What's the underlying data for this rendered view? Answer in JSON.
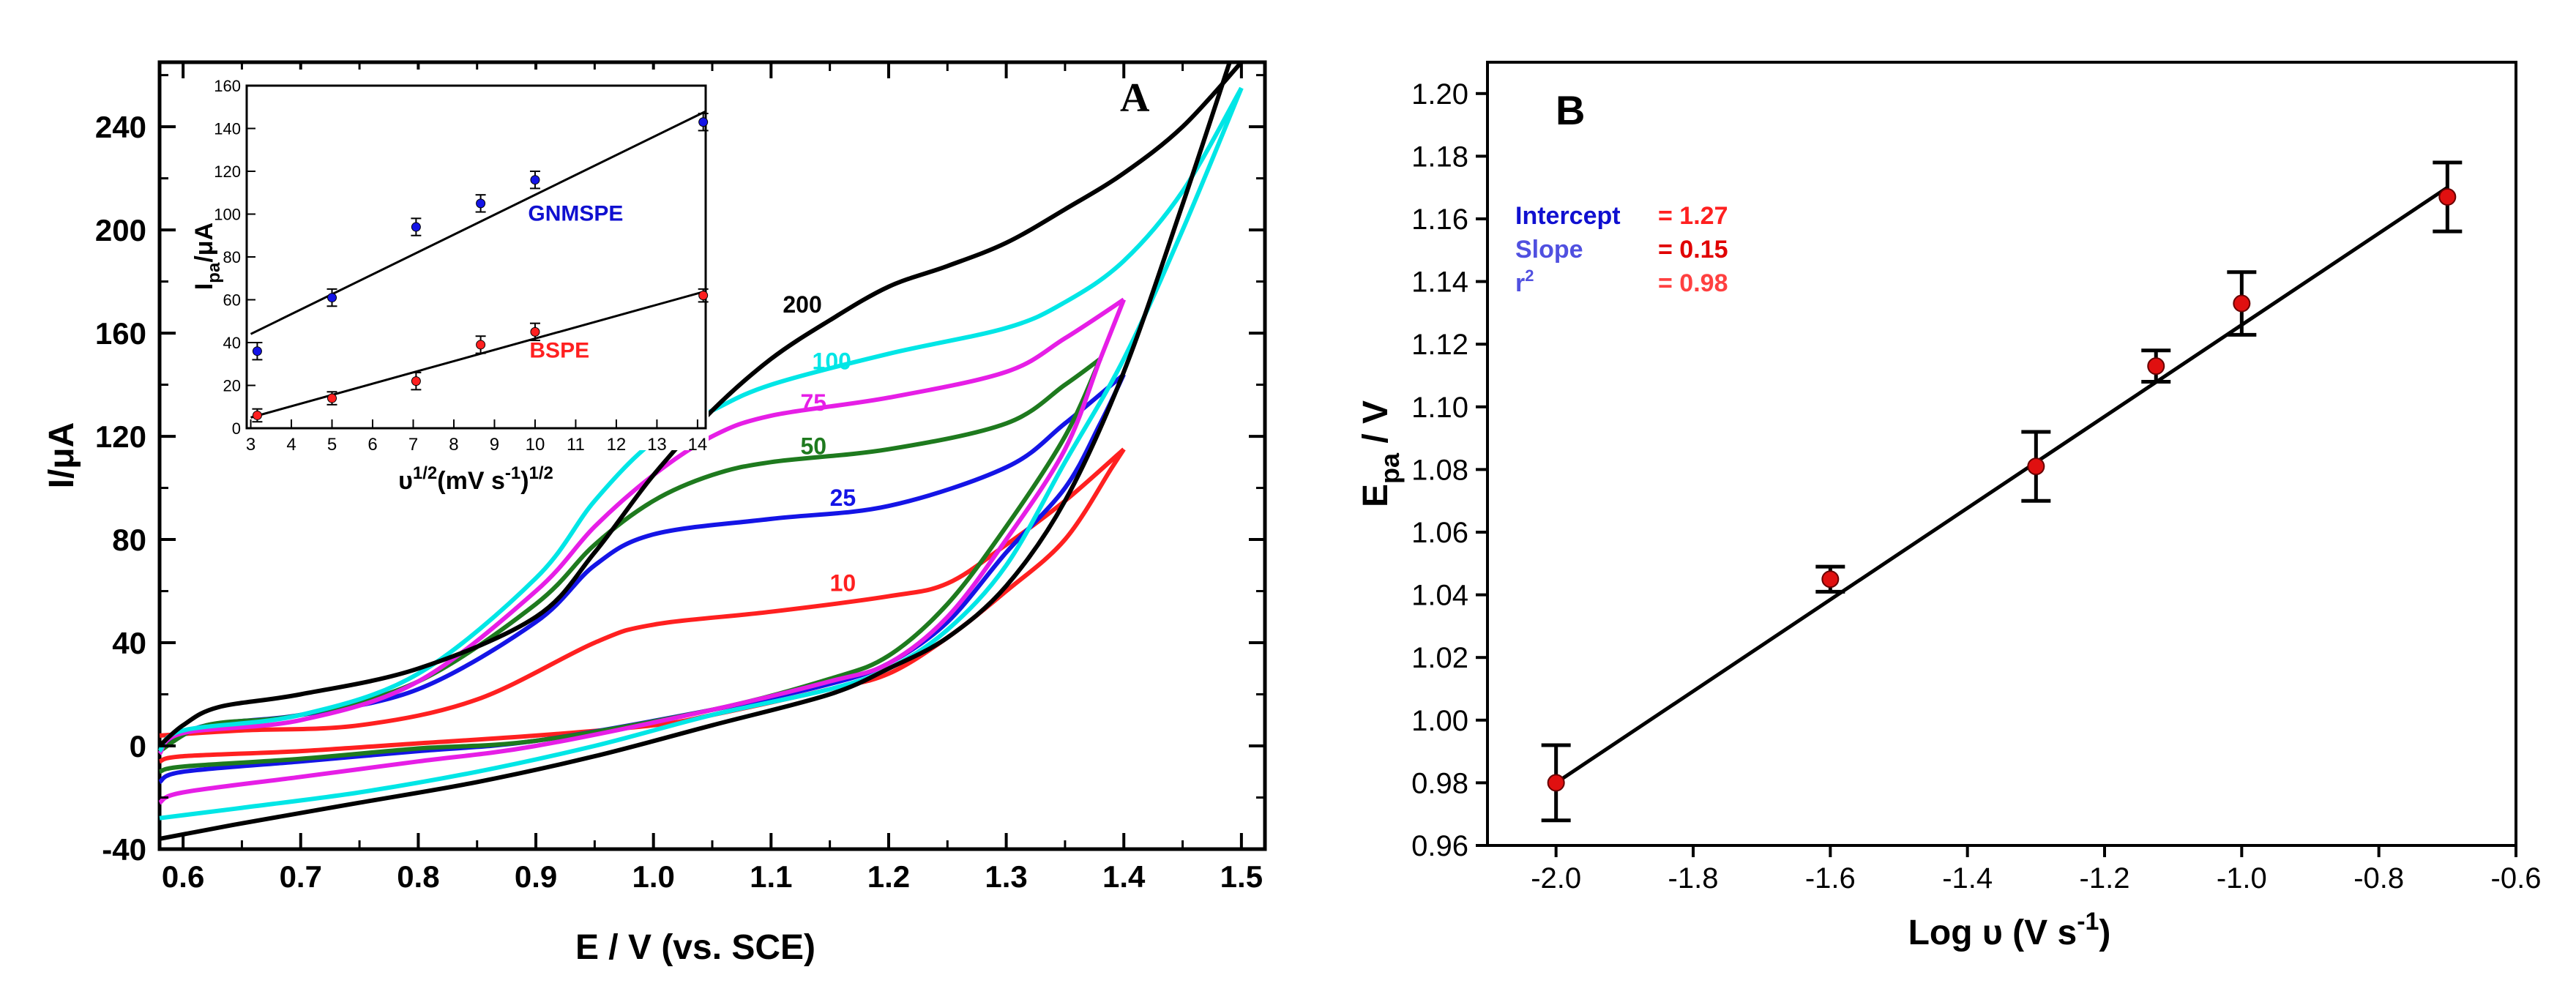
{
  "colors": {
    "c10": "#ff2020",
    "c25": "#1414e6",
    "c50": "#1e7a1e",
    "c75": "#e61ee6",
    "c100": "#00e6e6",
    "c200": "#000000",
    "point": "#e01010",
    "blue_text": "#1010d0",
    "red_text": "#ff2020"
  },
  "chart_data": [
    {
      "type": "line",
      "panel_label": "A",
      "title": "",
      "xlabel": "E / V (vs. SCE)",
      "ylabel": "I/μA",
      "xlim": [
        0.58,
        1.52
      ],
      "ylim": [
        -40,
        265
      ],
      "x_ticks": [
        "0.6",
        "0.7",
        "0.8",
        "0.9",
        "1.0",
        "1.1",
        "1.2",
        "1.3",
        "1.4",
        "1.5"
      ],
      "x_tick_values": [
        0.6,
        0.7,
        0.8,
        0.9,
        1.0,
        1.1,
        1.2,
        1.3,
        1.4,
        1.5
      ],
      "y_ticks": [
        "-40",
        "0",
        "40",
        "80",
        "120",
        "160",
        "200",
        "240"
      ],
      "y_tick_values": [
        -40,
        0,
        40,
        80,
        120,
        160,
        200,
        240
      ],
      "series": [
        {
          "name": "10",
          "color_key": "c10",
          "label_at": [
            1.15,
            60
          ],
          "forward": [
            [
              0.58,
              4
            ],
            [
              0.65,
              6
            ],
            [
              0.75,
              8
            ],
            [
              0.85,
              18
            ],
            [
              0.95,
              40
            ],
            [
              1.0,
              47
            ],
            [
              1.1,
              52
            ],
            [
              1.2,
              58
            ],
            [
              1.25,
              63
            ],
            [
              1.3,
              78
            ],
            [
              1.35,
              95
            ],
            [
              1.4,
              115
            ]
          ],
          "reverse": [
            [
              1.4,
              115
            ],
            [
              1.39,
              108
            ],
            [
              1.35,
              80
            ],
            [
              1.3,
              60
            ],
            [
              1.25,
              42
            ],
            [
              1.2,
              28
            ],
            [
              1.15,
              22
            ],
            [
              1.05,
              12
            ],
            [
              1.0,
              8
            ],
            [
              0.9,
              4
            ],
            [
              0.8,
              1
            ],
            [
              0.7,
              -2
            ],
            [
              0.6,
              -4
            ],
            [
              0.58,
              -6
            ]
          ]
        },
        {
          "name": "25",
          "color_key": "c25",
          "label_at": [
            1.15,
            93
          ],
          "forward": [
            [
              0.58,
              0
            ],
            [
              0.62,
              8
            ],
            [
              0.7,
              12
            ],
            [
              0.8,
              22
            ],
            [
              0.9,
              48
            ],
            [
              0.95,
              70
            ],
            [
              1.0,
              82
            ],
            [
              1.1,
              88
            ],
            [
              1.2,
              93
            ],
            [
              1.3,
              108
            ],
            [
              1.35,
              125
            ],
            [
              1.4,
              144
            ]
          ],
          "reverse": [
            [
              1.4,
              144
            ],
            [
              1.38,
              125
            ],
            [
              1.35,
              100
            ],
            [
              1.3,
              75
            ],
            [
              1.25,
              48
            ],
            [
              1.2,
              32
            ],
            [
              1.15,
              24
            ],
            [
              1.05,
              14
            ],
            [
              0.9,
              2
            ],
            [
              0.8,
              -2
            ],
            [
              0.7,
              -6
            ],
            [
              0.6,
              -10
            ],
            [
              0.58,
              -14
            ]
          ]
        },
        {
          "name": "50",
          "color_key": "c50",
          "label_at": [
            1.125,
            113
          ],
          "forward": [
            [
              0.58,
              -2
            ],
            [
              0.62,
              8
            ],
            [
              0.7,
              12
            ],
            [
              0.8,
              25
            ],
            [
              0.9,
              55
            ],
            [
              0.95,
              78
            ],
            [
              1.0,
              95
            ],
            [
              1.05,
              105
            ],
            [
              1.1,
              110
            ],
            [
              1.2,
              115
            ],
            [
              1.3,
              125
            ],
            [
              1.35,
              140
            ],
            [
              1.38,
              150
            ]
          ],
          "reverse": [
            [
              1.38,
              150
            ],
            [
              1.35,
              120
            ],
            [
              1.3,
              85
            ],
            [
              1.25,
              55
            ],
            [
              1.2,
              35
            ],
            [
              1.15,
              26
            ],
            [
              1.05,
              14
            ],
            [
              0.9,
              2
            ],
            [
              0.8,
              -1
            ],
            [
              0.7,
              -5
            ],
            [
              0.6,
              -8
            ],
            [
              0.58,
              -10
            ]
          ]
        },
        {
          "name": "75",
          "color_key": "c75",
          "label_at": [
            1.125,
            130
          ],
          "forward": [
            [
              0.58,
              -3
            ],
            [
              0.6,
              5
            ],
            [
              0.7,
              10
            ],
            [
              0.8,
              25
            ],
            [
              0.9,
              60
            ],
            [
              0.95,
              85
            ],
            [
              1.0,
              105
            ],
            [
              1.05,
              120
            ],
            [
              1.1,
              128
            ],
            [
              1.2,
              135
            ],
            [
              1.3,
              145
            ],
            [
              1.35,
              158
            ],
            [
              1.4,
              173
            ]
          ],
          "reverse": [
            [
              1.4,
              173
            ],
            [
              1.38,
              150
            ],
            [
              1.35,
              115
            ],
            [
              1.3,
              80
            ],
            [
              1.25,
              50
            ],
            [
              1.2,
              32
            ],
            [
              1.15,
              25
            ],
            [
              1.05,
              14
            ],
            [
              0.9,
              0
            ],
            [
              0.8,
              -6
            ],
            [
              0.7,
              -12
            ],
            [
              0.6,
              -18
            ],
            [
              0.58,
              -22
            ]
          ]
        },
        {
          "name": "100",
          "color_key": "c100",
          "label_at": [
            1.135,
            146
          ],
          "forward": [
            [
              0.58,
              -2
            ],
            [
              0.6,
              6
            ],
            [
              0.7,
              12
            ],
            [
              0.8,
              28
            ],
            [
              0.9,
              65
            ],
            [
              0.95,
              95
            ],
            [
              1.0,
              118
            ],
            [
              1.05,
              130
            ],
            [
              1.1,
              140
            ],
            [
              1.2,
              152
            ],
            [
              1.3,
              162
            ],
            [
              1.35,
              172
            ],
            [
              1.4,
              188
            ],
            [
              1.45,
              215
            ],
            [
              1.5,
              255
            ]
          ],
          "reverse": [
            [
              1.5,
              255
            ],
            [
              1.45,
              200
            ],
            [
              1.4,
              150
            ],
            [
              1.35,
              110
            ],
            [
              1.3,
              70
            ],
            [
              1.25,
              45
            ],
            [
              1.2,
              30
            ],
            [
              1.15,
              22
            ],
            [
              1.05,
              12
            ],
            [
              0.95,
              0
            ],
            [
              0.85,
              -10
            ],
            [
              0.75,
              -18
            ],
            [
              0.65,
              -24
            ],
            [
              0.58,
              -28
            ]
          ]
        },
        {
          "name": "200",
          "color_key": "c200",
          "label_at": [
            1.11,
            168
          ],
          "forward": [
            [
              0.58,
              0
            ],
            [
              0.6,
              8
            ],
            [
              0.63,
              15
            ],
            [
              0.7,
              20
            ],
            [
              0.8,
              30
            ],
            [
              0.9,
              50
            ],
            [
              0.95,
              75
            ],
            [
              1.0,
              105
            ],
            [
              1.05,
              130
            ],
            [
              1.1,
              150
            ],
            [
              1.15,
              165
            ],
            [
              1.2,
              178
            ],
            [
              1.25,
              186
            ],
            [
              1.3,
              195
            ],
            [
              1.35,
              208
            ],
            [
              1.4,
              222
            ],
            [
              1.45,
              240
            ],
            [
              1.5,
              265
            ]
          ],
          "reverse": [
            [
              1.49,
              265
            ],
            [
              1.45,
              210
            ],
            [
              1.4,
              145
            ],
            [
              1.35,
              95
            ],
            [
              1.3,
              62
            ],
            [
              1.25,
              42
            ],
            [
              1.2,
              30
            ],
            [
              1.15,
              20
            ],
            [
              1.05,
              8
            ],
            [
              0.95,
              -4
            ],
            [
              0.85,
              -14
            ],
            [
              0.75,
              -22
            ],
            [
              0.65,
              -30
            ],
            [
              0.58,
              -36
            ]
          ]
        }
      ]
    },
    {
      "type": "scatter",
      "inset_of": "A",
      "title": "",
      "xlabel": "υ",
      "xlabel_exp": "1/2",
      "xlabel_unit": "(mV s",
      "xlabel_unit_exp": "-1",
      "xlabel_close": ")",
      "ylabel": "I",
      "ylabel_sub": "pa",
      "ylabel_unit": "/μA",
      "xlim": [
        2.9,
        14.2
      ],
      "ylim": [
        0,
        160
      ],
      "x_ticks": [
        "3",
        "4",
        "5",
        "6",
        "7",
        "8",
        "9",
        "10",
        "11",
        "12",
        "13",
        "14"
      ],
      "x_tick_values": [
        3,
        4,
        5,
        6,
        7,
        8,
        9,
        10,
        11,
        12,
        13,
        14
      ],
      "y_ticks": [
        "0",
        "20",
        "40",
        "60",
        "80",
        "100",
        "120",
        "140",
        "160"
      ],
      "y_tick_values": [
        0,
        20,
        40,
        60,
        80,
        100,
        120,
        140,
        160
      ],
      "series": [
        {
          "name": "GNMSPE",
          "color_key": "c25",
          "label_color_key": "blue_text",
          "label_at": [
            11.0,
            97
          ],
          "x": [
            3.16,
            5.0,
            7.07,
            8.66,
            10.0,
            14.14
          ],
          "y": [
            36,
            61,
            94,
            105,
            116,
            143
          ],
          "err": [
            4,
            4,
            4,
            4,
            4,
            4
          ],
          "fit": [
            [
              3.0,
              44
            ],
            [
              14.2,
              148
            ]
          ]
        },
        {
          "name": "BSPE",
          "color_key": "c10",
          "label_color_key": "red_text",
          "label_at": [
            10.6,
            33
          ],
          "x": [
            3.16,
            5.0,
            7.07,
            8.66,
            10.0,
            14.14
          ],
          "y": [
            6,
            14,
            22,
            39,
            45,
            62
          ],
          "err": [
            3,
            3,
            4,
            4,
            4,
            3
          ],
          "fit": [
            [
              3.0,
              5
            ],
            [
              14.2,
              64
            ]
          ]
        }
      ]
    },
    {
      "type": "scatter",
      "panel_label": "B",
      "title": "",
      "xlabel": "Log υ (V s",
      "xlabel_exp": "-1",
      "xlabel_close": ")",
      "ylabel": "E",
      "ylabel_sub": "pa",
      "ylabel_unit": " / V",
      "xlim": [
        -2.1,
        -0.6
      ],
      "ylim": [
        0.96,
        1.21
      ],
      "x_ticks": [
        "-2.0",
        "-1.8",
        "-1.6",
        "-1.4",
        "-1.2",
        "-1.0",
        "-0.8",
        "-0.6"
      ],
      "x_tick_values": [
        -2.0,
        -1.8,
        -1.6,
        -1.4,
        -1.2,
        -1.0,
        -0.8,
        -0.6
      ],
      "y_ticks": [
        "0.96",
        "0.98",
        "1.00",
        "1.02",
        "1.04",
        "1.06",
        "1.08",
        "1.10",
        "1.12",
        "1.14",
        "1.16",
        "1.18",
        "1.20"
      ],
      "y_tick_values": [
        0.96,
        0.98,
        1.0,
        1.02,
        1.04,
        1.06,
        1.08,
        1.1,
        1.12,
        1.14,
        1.16,
        1.18,
        1.2
      ],
      "points": {
        "x": [
          -2.0,
          -1.6,
          -1.3,
          -1.125,
          -1.0,
          -0.7
        ],
        "y": [
          0.98,
          1.045,
          1.081,
          1.113,
          1.133,
          1.167
        ],
        "err": [
          0.012,
          0.004,
          0.011,
          0.005,
          0.01,
          0.011
        ]
      },
      "fit": [
        [
          -2.0,
          0.98
        ],
        [
          -0.7,
          1.17
        ]
      ],
      "stats": {
        "intercept_label": "Intercept",
        "intercept_value": "= 1.27",
        "slope_label": "Slope",
        "slope_value": "= 0.15",
        "r2_label": "r",
        "r2_exp": "2",
        "r2_value": "= 0.98"
      }
    }
  ]
}
